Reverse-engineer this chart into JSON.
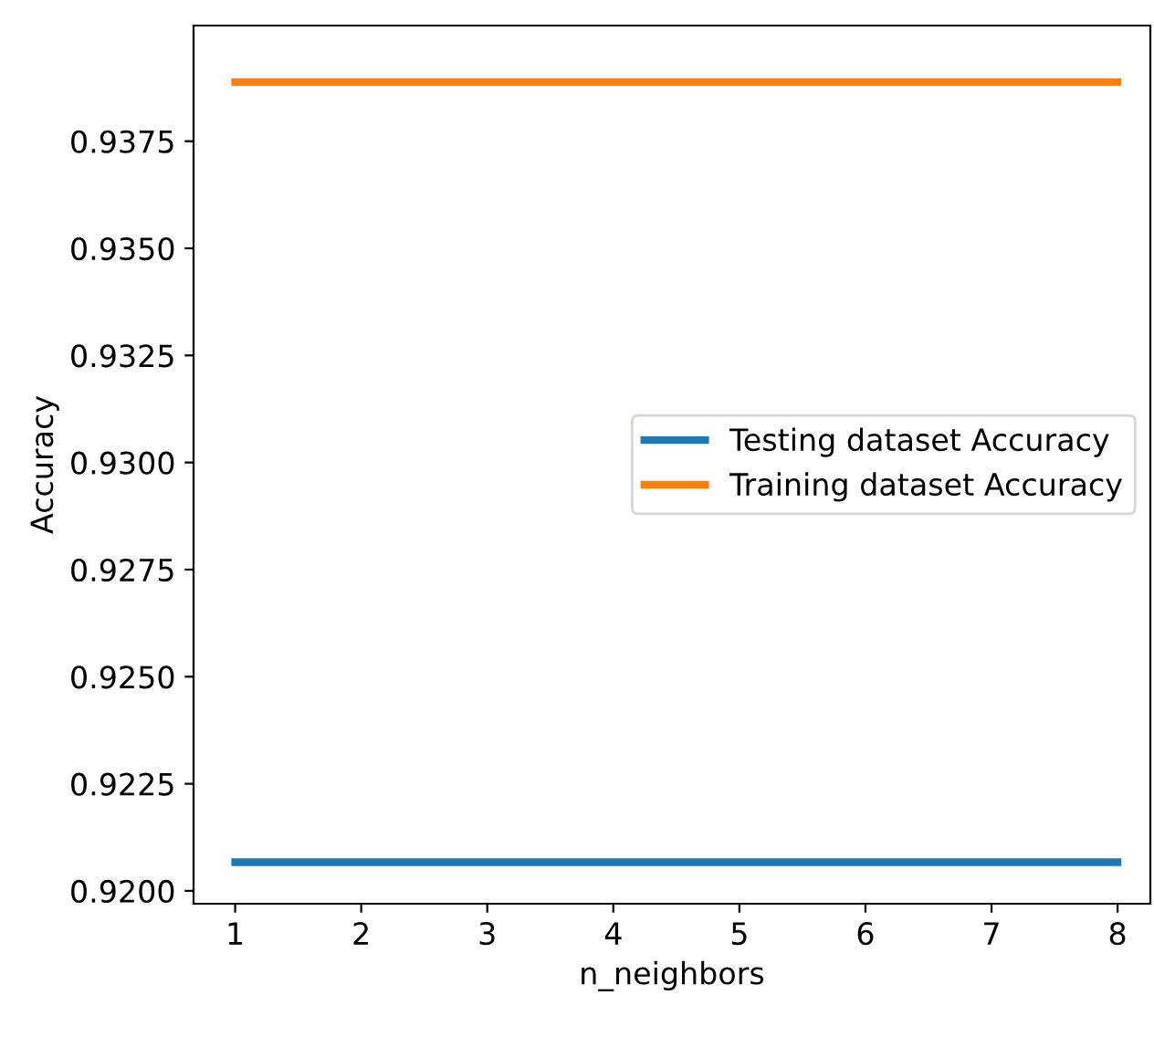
{
  "chart_data": {
    "type": "line",
    "xlabel": "n_neighbors",
    "ylabel": "Accuracy",
    "categories": [
      "1",
      "2",
      "3",
      "4",
      "5",
      "6",
      "7",
      "8"
    ],
    "series": [
      {
        "name": "Testing dataset Accuracy",
        "color": "#1f77b4",
        "values": [
          0.92067,
          0.92067,
          0.92067,
          0.92067,
          0.92067,
          0.92067,
          0.92067,
          0.92067
        ]
      },
      {
        "name": "Training dataset Accuracy",
        "color": "#ff7f0e",
        "values": [
          0.93888,
          0.93888,
          0.93888,
          0.93888,
          0.93888,
          0.93888,
          0.93888,
          0.93888
        ]
      }
    ],
    "ylim": [
      0.9197,
      0.9402
    ],
    "yticks": [
      {
        "value": 0.92,
        "label": "0.9200"
      },
      {
        "value": 0.9225,
        "label": "0.9225"
      },
      {
        "value": 0.925,
        "label": "0.9250"
      },
      {
        "value": 0.9275,
        "label": "0.9275"
      },
      {
        "value": 0.93,
        "label": "0.9300"
      },
      {
        "value": 0.9325,
        "label": "0.9325"
      },
      {
        "value": 0.935,
        "label": "0.9350"
      },
      {
        "value": 0.9375,
        "label": "0.9375"
      }
    ],
    "grid": false,
    "legend": "center right",
    "marker": "none",
    "line_style": "solid"
  }
}
